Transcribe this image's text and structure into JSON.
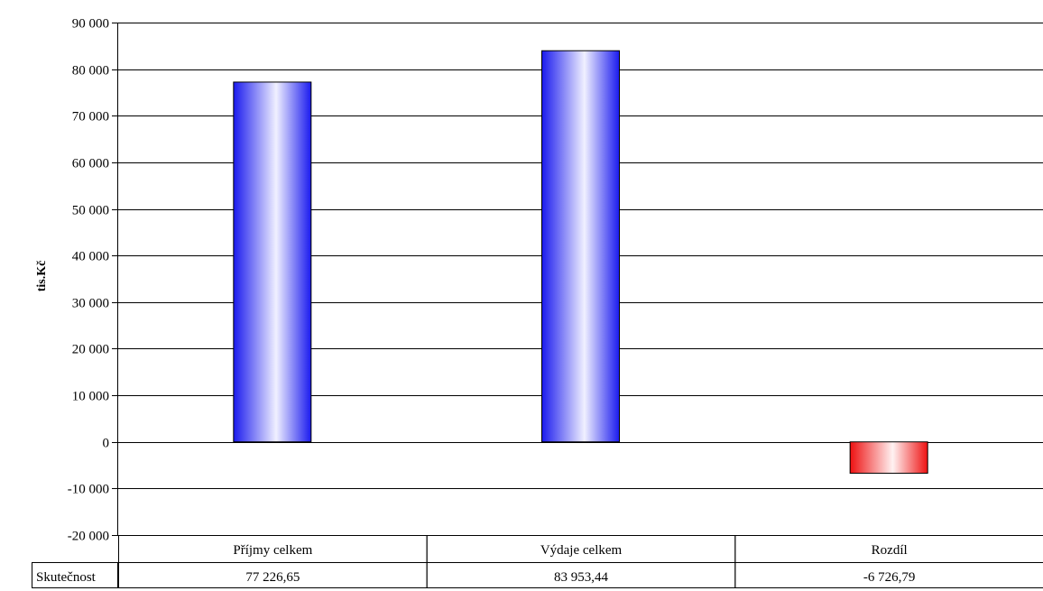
{
  "chart_data": {
    "type": "bar",
    "title": "",
    "ylabel": "tis.Kč",
    "xlabel": "",
    "ylim": [
      -20000,
      90000
    ],
    "ytick_step": 10000,
    "yticks": [
      "90 000",
      "80 000",
      "70 000",
      "60 000",
      "50 000",
      "40 000",
      "30 000",
      "20 000",
      "10 000",
      "0",
      "-10 000",
      "-20 000"
    ],
    "categories": [
      "Příjmy celkem",
      "Výdaje celkem",
      "Rozdíl"
    ],
    "series": [
      {
        "name": "Skutečnost",
        "values": [
          77226.65,
          83953.44,
          -6726.79
        ]
      }
    ],
    "table": {
      "row_label": "Skutečnost",
      "cells": [
        "77 226,65",
        "83 953,44",
        "-6 726,79"
      ]
    },
    "grid": true,
    "legend": "none",
    "colors": {
      "positive_dark": "#1a1aee",
      "positive_light": "#f0f0ff",
      "negative_dark": "#ee1111",
      "negative_light": "#fff2f2",
      "gridline": "#000000"
    }
  }
}
